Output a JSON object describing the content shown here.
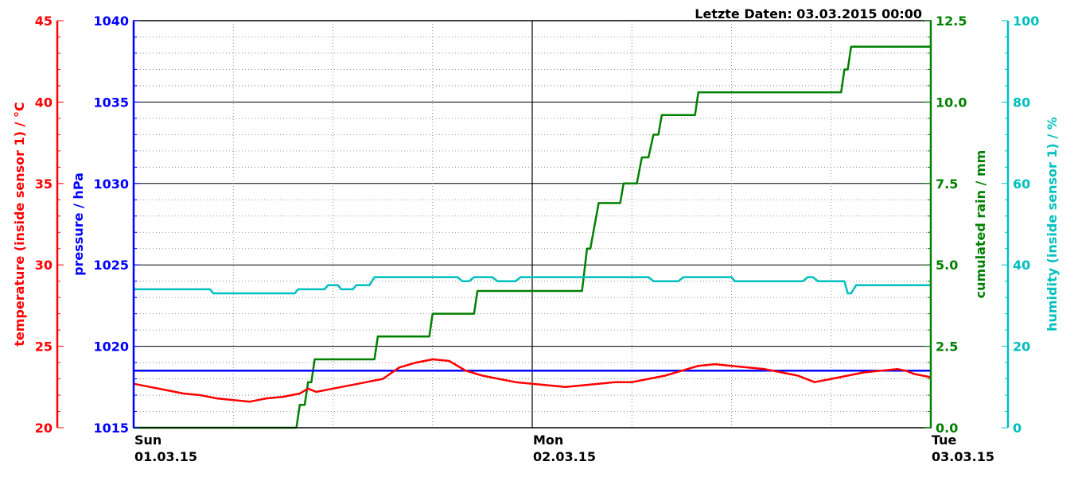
{
  "header": {
    "last_data": "Letzte Daten: 03.03.2015 00:00"
  },
  "colors": {
    "temperature": "#ff0000",
    "pressure": "#0000ff",
    "rain": "#008000",
    "humidity": "#00bfbf"
  },
  "chart_data": {
    "type": "line",
    "grid": true,
    "x_ticks": [
      {
        "day": "Sun",
        "date": "01.03.15",
        "t": 0
      },
      {
        "day": "Mon",
        "date": "02.03.15",
        "t": 24
      },
      {
        "day": "Tue",
        "date": "03.03.15",
        "t": 48
      }
    ],
    "xlim": [
      0,
      48
    ],
    "axes": {
      "temperature": {
        "label": "temperature (inside sensor 1) / °C",
        "ylim": [
          20,
          45
        ],
        "ticks": [
          "20",
          "25",
          "30",
          "35",
          "40",
          "45"
        ]
      },
      "pressure": {
        "label": "pressure / hPa",
        "ylim": [
          1015,
          1040
        ],
        "ticks": [
          "1015",
          "1020",
          "1025",
          "1030",
          "1035",
          "1040"
        ]
      },
      "rain": {
        "label": "cumulated rain / mm",
        "ylim": [
          0,
          12.5
        ],
        "ticks": [
          "0.0",
          "2.5",
          "5.0",
          "7.5",
          "10.0",
          "12.5"
        ]
      },
      "humidity": {
        "label": "humidity (inside sensor 1) / %",
        "ylim": [
          0,
          100
        ],
        "ticks": [
          "0",
          "20",
          "40",
          "60",
          "80",
          "100"
        ]
      }
    },
    "series": [
      {
        "name": "temperature",
        "axis": "temperature",
        "x": [
          0,
          1,
          2,
          3,
          4,
          5,
          6,
          7,
          8,
          9,
          10,
          10.5,
          11,
          12,
          12.5,
          13,
          14,
          15,
          16,
          17,
          18,
          19,
          20,
          21,
          22,
          23,
          24,
          25,
          26,
          27,
          28,
          29,
          30,
          31,
          32,
          33,
          34,
          35,
          36,
          37,
          38,
          39,
          40,
          41,
          42,
          43,
          43.5,
          44,
          45,
          46,
          46.5,
          47,
          48
        ],
        "y": [
          22.7,
          22.5,
          22.3,
          22.1,
          22.0,
          21.8,
          21.7,
          21.6,
          21.8,
          21.9,
          22.1,
          22.4,
          22.2,
          22.4,
          22.5,
          22.6,
          22.8,
          23.0,
          23.7,
          24.0,
          24.2,
          24.1,
          23.5,
          23.2,
          23.0,
          22.8,
          22.7,
          22.6,
          22.5,
          22.6,
          22.7,
          22.8,
          22.8,
          23.0,
          23.2,
          23.5,
          23.8,
          23.9,
          23.8,
          23.7,
          23.6,
          23.4,
          23.2,
          22.8,
          23.0,
          23.2,
          23.3,
          23.4,
          23.5,
          23.6,
          23.5,
          23.3,
          23.1
        ]
      },
      {
        "name": "pressure",
        "axis": "pressure",
        "x": [
          0,
          48
        ],
        "y": [
          1018.5,
          1018.5
        ]
      },
      {
        "name": "rain",
        "axis": "rain",
        "x": [
          0,
          9.8,
          10,
          10.3,
          10.5,
          10.7,
          10.9,
          11.1,
          14.5,
          14.7,
          17.8,
          18,
          20.5,
          20.7,
          24,
          27,
          27.3,
          27.5,
          28,
          28.2,
          29.3,
          29.5,
          30.3,
          30.6,
          31,
          31.3,
          31.6,
          31.8,
          33.8,
          34,
          36,
          38,
          42.6,
          42.8,
          43,
          43.2,
          44,
          48
        ],
        "y": [
          0,
          0,
          0.7,
          0.7,
          1.4,
          1.4,
          2.1,
          2.1,
          2.1,
          2.8,
          2.8,
          3.5,
          3.5,
          4.2,
          4.2,
          4.2,
          5.5,
          5.5,
          6.9,
          6.9,
          6.9,
          7.5,
          7.5,
          8.3,
          8.3,
          9.0,
          9.0,
          9.6,
          9.6,
          10.3,
          10.3,
          10.3,
          10.3,
          11.0,
          11.0,
          11.7,
          11.7,
          11.7
        ]
      },
      {
        "name": "humidity",
        "axis": "humidity",
        "x": [
          0,
          4.6,
          4.8,
          9.7,
          9.9,
          11.5,
          11.7,
          12.3,
          12.5,
          13.2,
          13.4,
          14.2,
          14.5,
          19.5,
          19.8,
          20.2,
          20.5,
          21.6,
          21.9,
          23.0,
          23.3,
          31.0,
          31.3,
          32.8,
          33.1,
          33.5,
          33.8,
          36.0,
          36.2,
          40.3,
          40.6,
          40.9,
          41.2,
          42.8,
          43.0,
          43.2,
          43.5,
          48
        ],
        "y": [
          34,
          34,
          33,
          33,
          34,
          34,
          35,
          35,
          34,
          34,
          35,
          35,
          37,
          37,
          36,
          36,
          37,
          37,
          36,
          36,
          37,
          37,
          36,
          36,
          37,
          37,
          37,
          37,
          36,
          36,
          37,
          37,
          36,
          36,
          33,
          33,
          35,
          35
        ]
      }
    ]
  }
}
